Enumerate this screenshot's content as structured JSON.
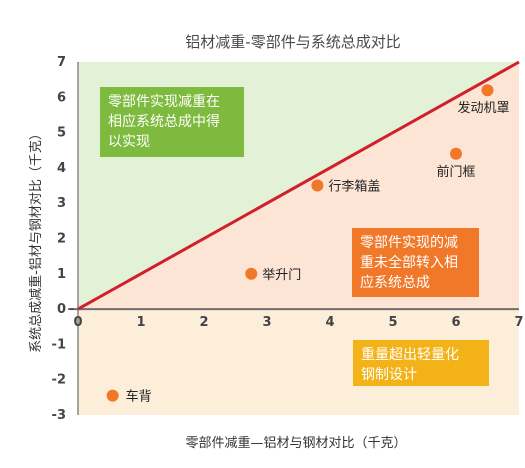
{
  "chart_data": {
    "type": "scatter",
    "title": "铝材减重-零部件与系统总成对比",
    "xlabel": "零部件减重—铝材与钢材对比（千克）",
    "ylabel": "系统总成减重-铝材与钢材对比（千克）",
    "xlim": [
      0,
      7
    ],
    "ylim": [
      -3,
      7
    ],
    "xticks": [
      "0",
      "1",
      "2",
      "3",
      "4",
      "5",
      "6",
      "7"
    ],
    "yticks": [
      "-3",
      "-2",
      "-1",
      "0",
      "1",
      "2",
      "3",
      "4",
      "5",
      "6",
      "7"
    ],
    "reference_line": {
      "from": [
        0,
        0
      ],
      "to": [
        7,
        7
      ],
      "color": "#d0202e"
    },
    "points": [
      {
        "label": "发动机罩",
        "x": 6.5,
        "y": 6.2
      },
      {
        "label": "前门框",
        "x": 6.0,
        "y": 4.4
      },
      {
        "label": "行李箱盖",
        "x": 3.8,
        "y": 3.5
      },
      {
        "label": "举升门",
        "x": 2.75,
        "y": 1.0
      },
      {
        "label": "车背",
        "x": 0.55,
        "y": -2.45
      }
    ],
    "annotations": [
      {
        "lines": [
          "零部件实现减重在",
          "相应系统总成中得",
          "以实现"
        ],
        "color": "#7dba3e"
      },
      {
        "lines": [
          "零部件实现的减",
          "重未全部转入相",
          "应系统总成"
        ],
        "color": "#f07828"
      },
      {
        "lines": [
          "重量超出轻量化",
          "钢制设计"
        ],
        "color": "#f3b318"
      }
    ],
    "regions": {
      "upper_left": "#e3f1d6",
      "lower_right": "#fde5d6",
      "below_zero": "#fdeed9"
    },
    "point_color": "#f07828",
    "grid": false
  }
}
